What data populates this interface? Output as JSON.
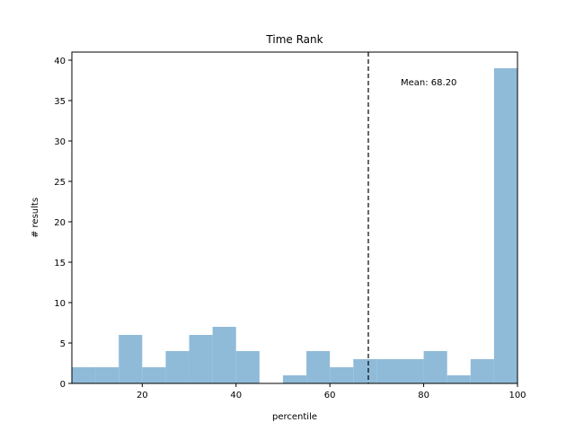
{
  "chart_data": {
    "type": "bar",
    "title": "Time Rank",
    "xlabel": "percentile",
    "ylabel": "# results",
    "xlim": [
      5,
      100
    ],
    "ylim": [
      0,
      41
    ],
    "xticks": [
      20,
      40,
      60,
      80,
      100
    ],
    "yticks": [
      0,
      5,
      10,
      15,
      20,
      25,
      30,
      35,
      40
    ],
    "bin_width": 5,
    "bin_starts": [
      5,
      10,
      15,
      20,
      25,
      30,
      35,
      40,
      45,
      50,
      55,
      60,
      65,
      70,
      75,
      80,
      85,
      90,
      95
    ],
    "values": [
      2,
      2,
      6,
      2,
      4,
      6,
      7,
      4,
      0,
      1,
      4,
      2,
      3,
      3,
      3,
      4,
      1,
      3,
      39
    ],
    "bar_color": "#8fbbd9",
    "mean_line": {
      "value": 68.2,
      "label": "Mean: 68.20",
      "style": "dashed",
      "color": "#000000"
    },
    "grid": false,
    "legend": "none"
  }
}
